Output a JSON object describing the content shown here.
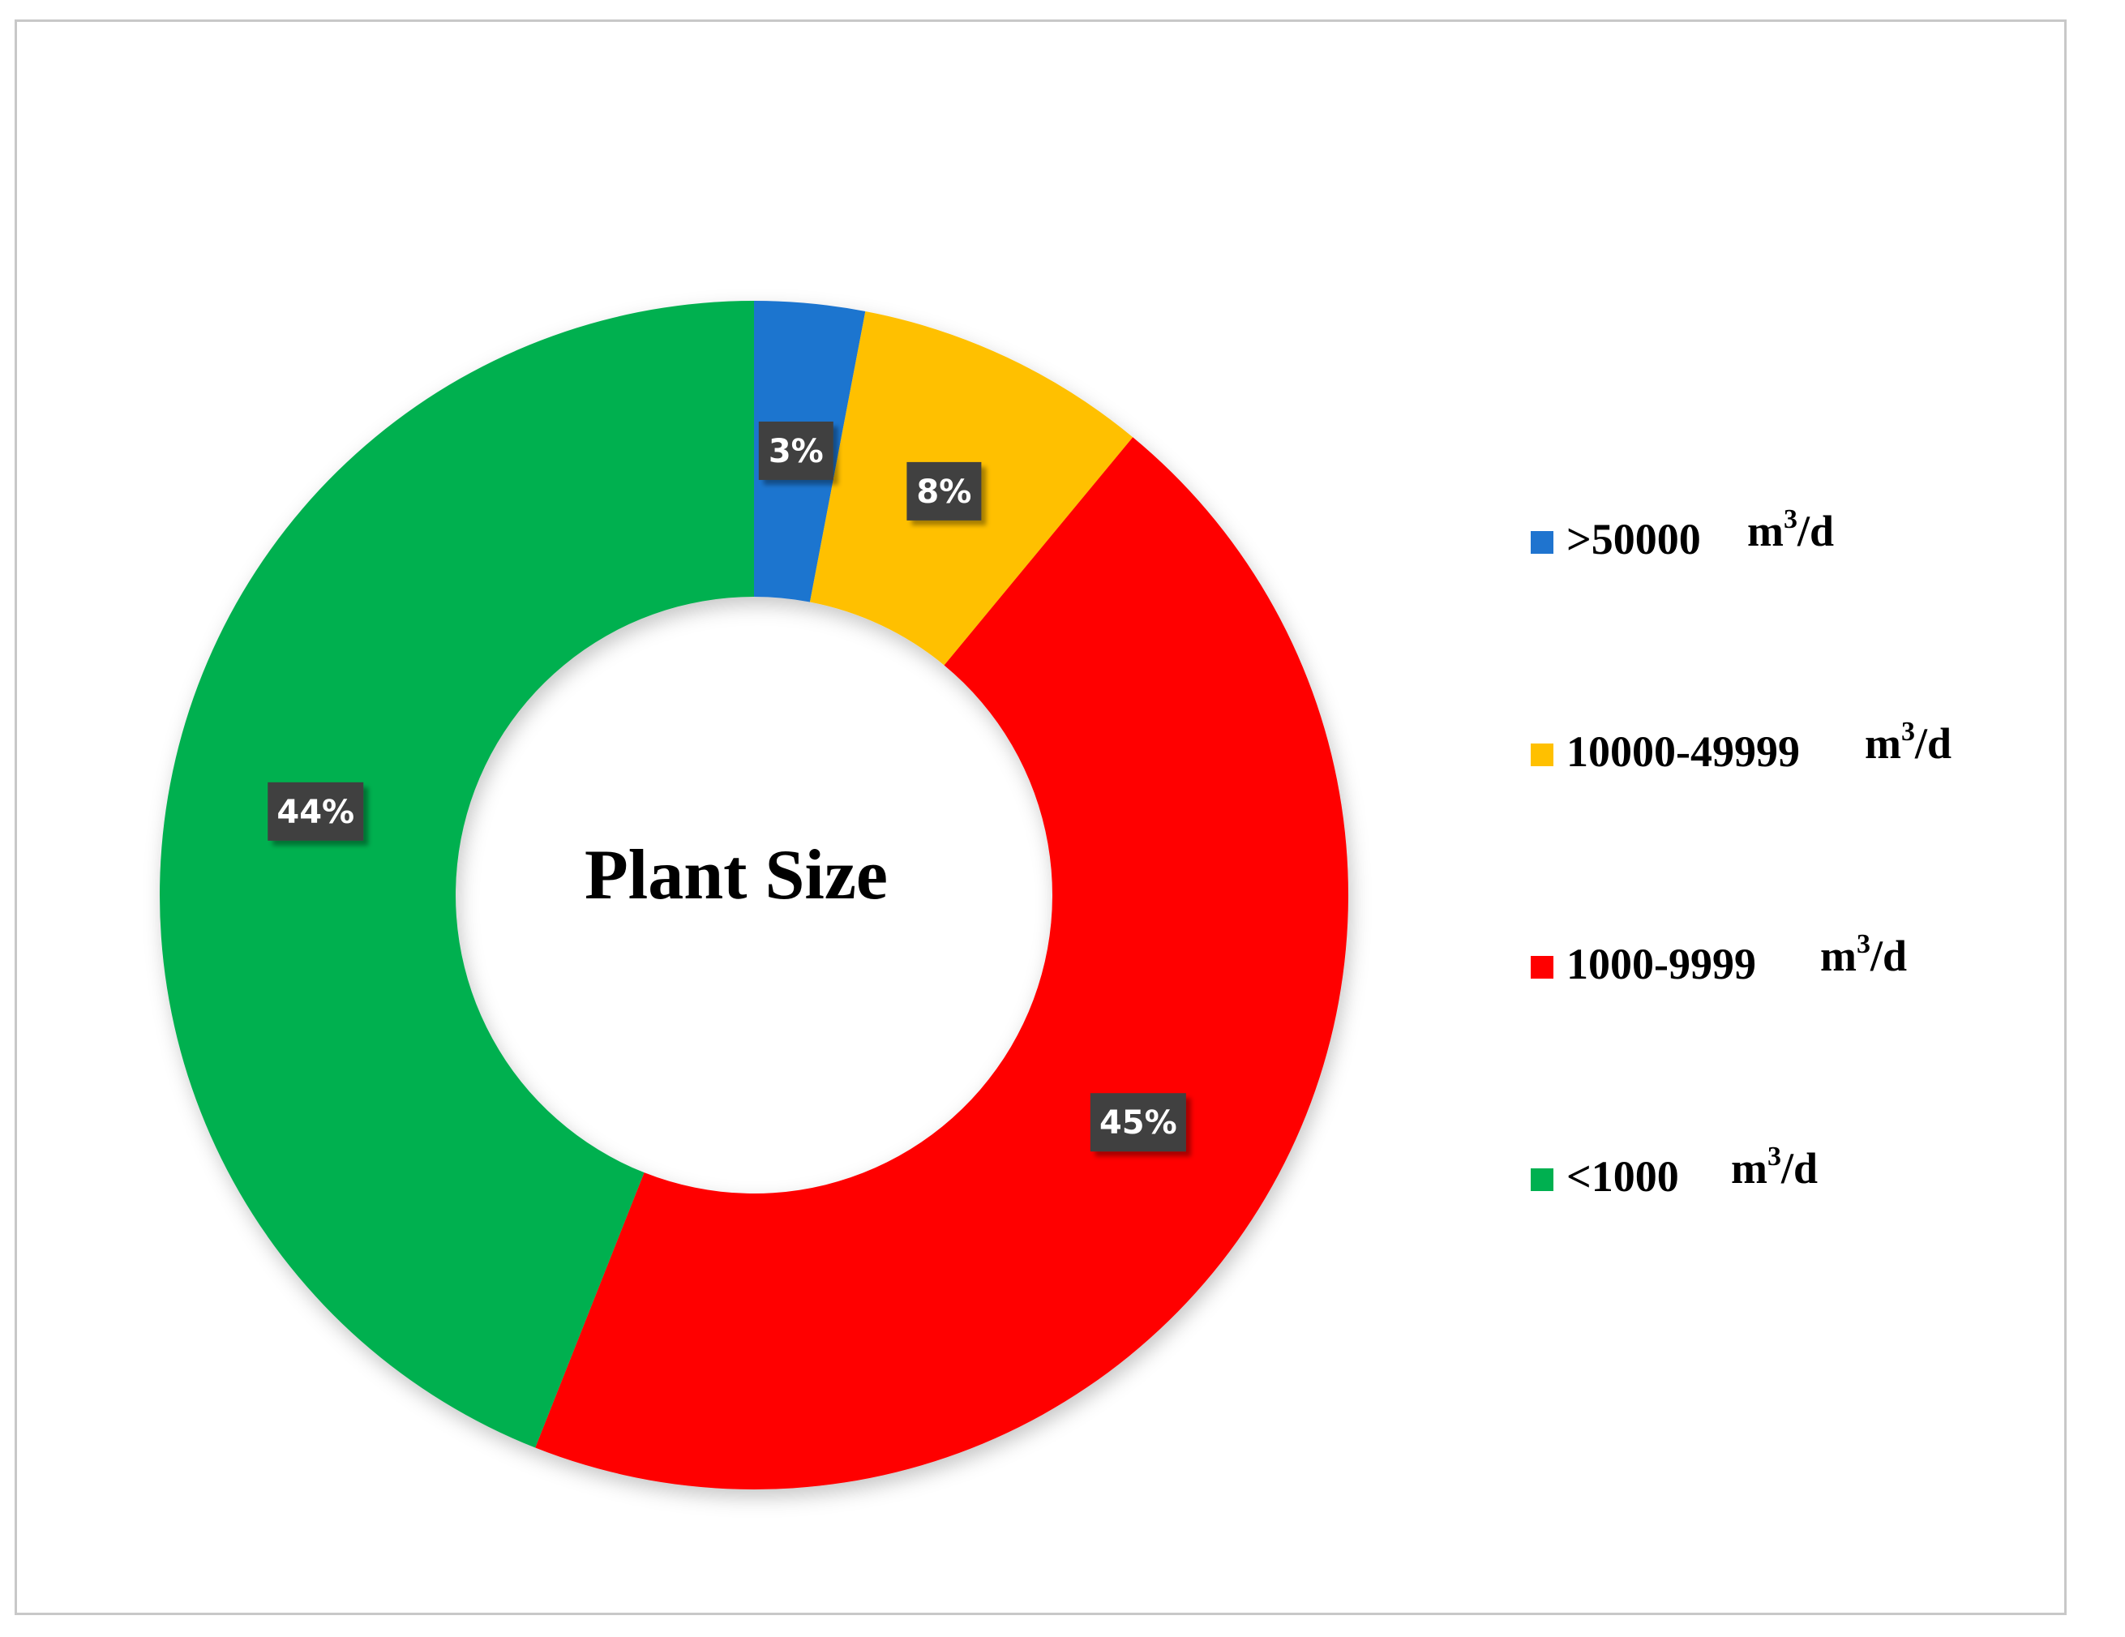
{
  "chart_data": {
    "type": "pie",
    "variant": "donut",
    "title": "Plant Size",
    "slices": [
      {
        "label": ">50000",
        "unit": "m",
        "unit_sup": "3",
        "unit_tail": "/d",
        "value": 3,
        "value_label": "3%",
        "color": "#1f74cf"
      },
      {
        "label": "10000-49999",
        "unit": "m",
        "unit_sup": "3",
        "unit_tail": "/d",
        "value": 8,
        "value_label": "8%",
        "color": "#ffc000"
      },
      {
        "label": "1000-9999",
        "unit": "m",
        "unit_sup": "3",
        "unit_tail": "/d",
        "value": 45,
        "value_label": "45%",
        "color": "#ff0000"
      },
      {
        "label": "<1000",
        "unit": "m",
        "unit_sup": "3",
        "unit_tail": "/d",
        "value": 44,
        "value_label": "44%",
        "color": "#00b050"
      }
    ],
    "legend_position": "right",
    "data_label_background": "#404040"
  }
}
